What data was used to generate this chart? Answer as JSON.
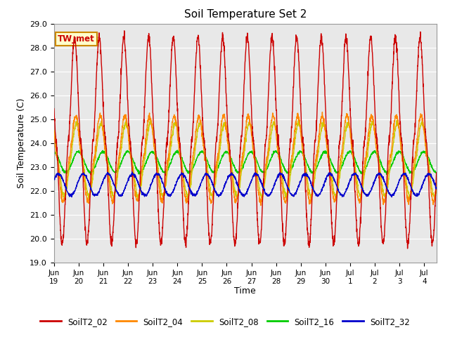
{
  "title": "Soil Temperature Set 2",
  "xlabel": "Time",
  "ylabel": "Soil Temperature (C)",
  "ylim": [
    19.0,
    29.0
  ],
  "yticks": [
    19.0,
    20.0,
    21.0,
    22.0,
    23.0,
    24.0,
    25.0,
    26.0,
    27.0,
    28.0,
    29.0
  ],
  "background_color": "#e8e8e8",
  "annotation_text": "TW_met",
  "annotation_bg": "#ffffcc",
  "annotation_border": "#cc8800",
  "series_colors": {
    "SoilT2_02": "#cc0000",
    "SoilT2_04": "#ff8800",
    "SoilT2_08": "#cccc00",
    "SoilT2_16": "#00cc00",
    "SoilT2_32": "#0000cc"
  },
  "series_order": [
    "SoilT2_02",
    "SoilT2_04",
    "SoilT2_08",
    "SoilT2_16",
    "SoilT2_32"
  ],
  "num_days": 15.5,
  "points_per_day": 144,
  "figsize": [
    6.4,
    4.8
  ],
  "dpi": 100
}
